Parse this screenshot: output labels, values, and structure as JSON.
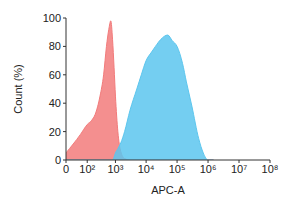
{
  "chart_data": {
    "type": "area",
    "x_label": "APC-A",
    "y_label": "Count (%)",
    "x": [
      0,
      50,
      100,
      150,
      200,
      300,
      400,
      500,
      600,
      700,
      800,
      900,
      1000,
      1200,
      1500,
      2000,
      3000,
      5000,
      7000,
      10000,
      15000,
      20000,
      30000,
      50000,
      70000,
      100000,
      150000,
      200000,
      300000,
      500000,
      700000,
      1000000,
      1500000
    ],
    "series": [
      {
        "color": "#f27b7b",
        "values": [
          5,
          18,
          25,
          28,
          32,
          45,
          60,
          80,
          92,
          98,
          85,
          65,
          45,
          20,
          6,
          1,
          0,
          0,
          0,
          0,
          0,
          0,
          0,
          0,
          0,
          0,
          0,
          0,
          0,
          0,
          0,
          0,
          0
        ]
      },
      {
        "color": "#5cc6ee",
        "values": [
          0,
          0,
          0,
          0,
          0,
          0,
          0,
          0,
          0,
          0,
          0,
          2,
          5,
          8,
          12,
          20,
          35,
          50,
          60,
          70,
          76,
          80,
          85,
          88,
          84,
          80,
          68,
          55,
          38,
          15,
          5,
          0,
          0
        ]
      }
    ],
    "xlim": [
      0,
      100000000
    ],
    "xticks": [
      {
        "value": 0,
        "label": "0"
      },
      {
        "value": 100,
        "label": "10²"
      },
      {
        "value": 1000,
        "label": "10³"
      },
      {
        "value": 10000,
        "label": "10⁴"
      },
      {
        "value": 100000,
        "label": "10⁵"
      },
      {
        "value": 1000000,
        "label": "10⁶"
      },
      {
        "value": 10000000,
        "label": "10⁷"
      },
      {
        "value": 100000000,
        "label": "10⁸"
      }
    ],
    "ylim": [
      0,
      100
    ],
    "yticks": [
      0,
      20,
      40,
      60,
      80,
      100
    ],
    "grid": false
  }
}
